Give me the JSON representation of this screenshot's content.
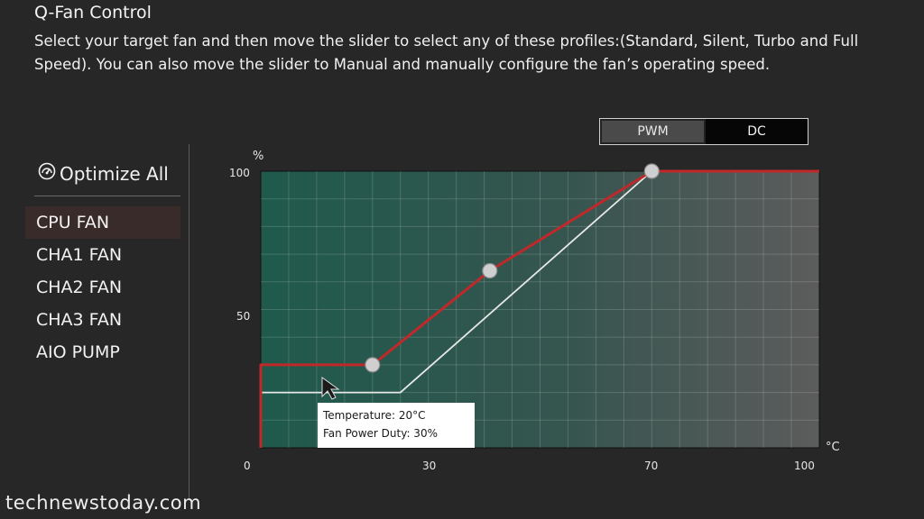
{
  "header": {
    "title": "Q-Fan Control",
    "description": "Select your target fan and then move the slider to select any of these profiles:(Standard, Silent, Turbo and Full Speed). You can also move the slider to Manual and manually configure the fan’s operating speed."
  },
  "sidebar": {
    "optimize_label": "Optimize All",
    "optimize_icon": "gauge-icon",
    "items": [
      {
        "label": "CPU FAN",
        "active": true
      },
      {
        "label": "CHA1 FAN",
        "active": false
      },
      {
        "label": "CHA2 FAN",
        "active": false
      },
      {
        "label": "CHA3 FAN",
        "active": false
      },
      {
        "label": "AIO PUMP",
        "active": false
      }
    ]
  },
  "mode_toggle": {
    "options": [
      "PWM",
      "DC"
    ],
    "selected": "PWM"
  },
  "chart_data": {
    "type": "line",
    "xlabel": "°C",
    "ylabel": "%",
    "xlim": [
      0,
      100
    ],
    "ylim": [
      0,
      100
    ],
    "x_ticks": [
      "0",
      "30",
      "70",
      "100"
    ],
    "y_ticks": [
      "100",
      "50"
    ],
    "grid": true,
    "series": [
      {
        "color": "#c0282a",
        "x": [
          0,
          0,
          20,
          41,
          70,
          100
        ],
        "y": [
          0,
          30,
          30,
          64,
          100,
          100
        ],
        "control_points": [
          [
            20,
            30
          ],
          [
            41,
            64
          ],
          [
            70,
            100
          ]
        ]
      },
      {
        "color": "#e8e8e8",
        "x": [
          0,
          25,
          70
        ],
        "y": [
          20,
          20,
          100
        ]
      }
    ]
  },
  "tooltip": {
    "temperature": "Temperature: 20°C",
    "duty": "Fan Power Duty: 30%"
  },
  "watermark": "technewstoday.com",
  "colors": {
    "background": "#272727",
    "accent": "#c0282a",
    "chart_fill_start": "#1f5a4c",
    "chart_fill_end": "#5c5c5c"
  }
}
